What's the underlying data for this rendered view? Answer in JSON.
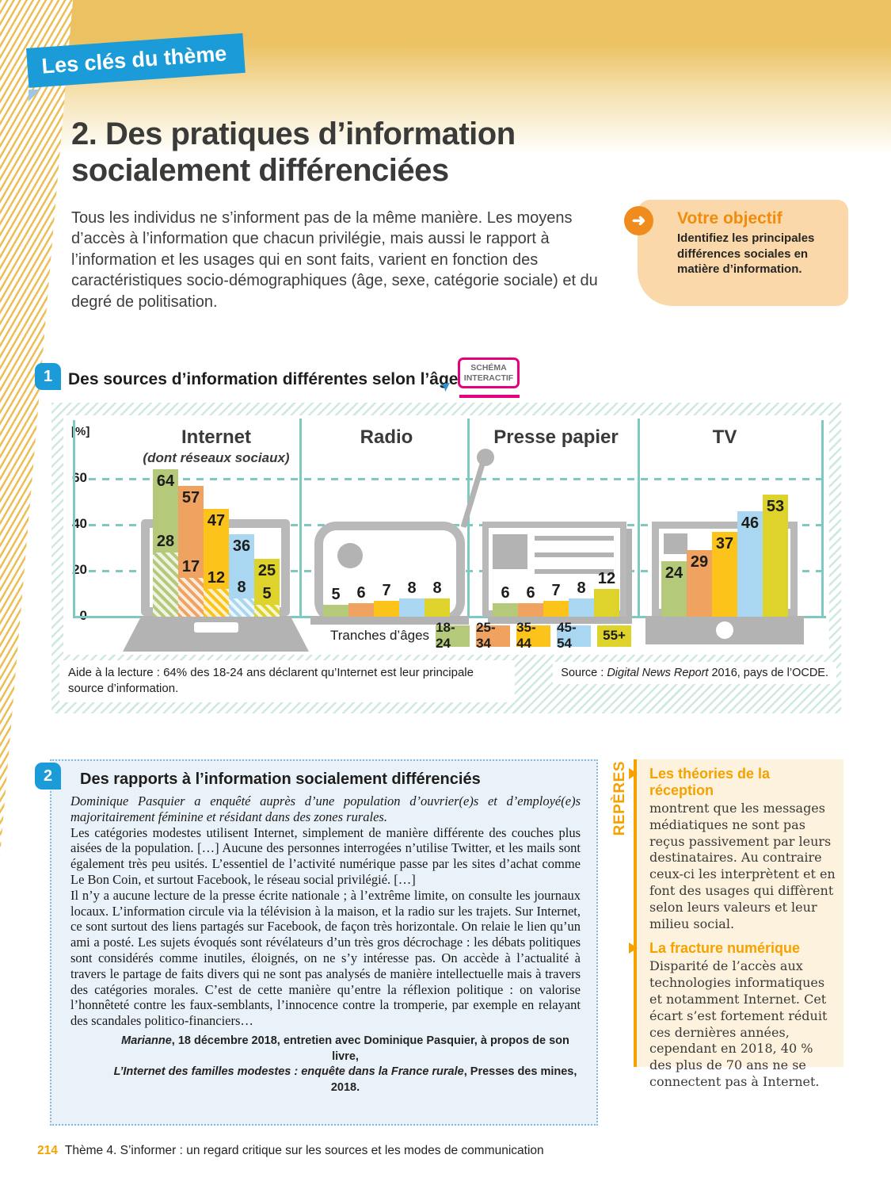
{
  "banner": "Les clés du thème",
  "title": "2. Des pratiques d’information socialement différenciées",
  "intro": "Tous les individus ne s’informent pas de la même manière. Les moyens d’accès à l’information que chacun privilégie, mais aussi le rapport à l’information et les usages qui en sont faits, varient en fonction des caractéristiques socio-démographiques (âge, sexe, catégorie sociale) et du degré de politisation.",
  "icons": {
    "arrow": "➜",
    "cursor": "➤"
  },
  "objectif": {
    "title": "Votre objectif",
    "body": "Identifiez les principales différences sociales en matière d’information."
  },
  "section1": {
    "number": "1",
    "title": "Des sources d’information différentes selon l’âge",
    "badge_line1": "SCHÉMA",
    "badge_line2": "INTERACTIF"
  },
  "chart_data": {
    "type": "bar",
    "title": "Des sources d’information différentes selon l’âge",
    "unit_label": "[%]",
    "ylabel": "%",
    "ylim": [
      0,
      68
    ],
    "y_ticks": [
      0,
      20,
      40,
      60
    ],
    "grid": true,
    "legend_label": "Tranches d’âges",
    "age_groups": [
      {
        "label": "18-24",
        "color": "#b5c97a"
      },
      {
        "label": "25-34",
        "color": "#f0a261"
      },
      {
        "label": "35-44",
        "color": "#fcc31a"
      },
      {
        "label": "45-54",
        "color": "#a9d7f2"
      },
      {
        "label": "55+",
        "color": "#ddd32b"
      }
    ],
    "panels": [
      {
        "name": "Internet",
        "subtitle": "(dont réseaux sociaux)",
        "values": [
          64,
          57,
          47,
          36,
          25
        ],
        "social_values": [
          28,
          17,
          12,
          8,
          5
        ]
      },
      {
        "name": "Radio",
        "values": [
          5,
          6,
          7,
          8,
          8
        ]
      },
      {
        "name": "Presse papier",
        "values": [
          6,
          6,
          7,
          8,
          12
        ]
      },
      {
        "name": "TV",
        "values": [
          24,
          29,
          37,
          46,
          53
        ]
      }
    ],
    "captions": {
      "aide": "Aide à la lecture : 64% des 18-24 ans déclarent qu’Internet est leur principale source d’information.",
      "source_prefix": "Source : ",
      "source_italic": "Digital News Report",
      "source_suffix": " 2016, pays de l’OCDE."
    }
  },
  "section2": {
    "number": "2",
    "title": "Des rapports à l’information socialement différenciés",
    "intro_italic": "Dominique Pasquier a enquêté auprès d’une population d’ouvrier(e)s et d’employé(e)s majoritairement féminine et résidant dans des zones rurales.",
    "para1": "Les catégories modestes utilisent Internet, simplement de manière différente des couches plus aisées de la population. […] Aucune des personnes interrogées n’utilise Twitter, et les mails sont également très peu usités. L’essentiel de l’activité numérique passe par les sites d’achat comme Le Bon Coin, et surtout Facebook, le réseau social privilégié. […]",
    "para2": "Il n’y a aucune lecture de la presse écrite nationale ; à l’extrême limite, on consulte les journaux locaux. L’information circule via la télévision à la maison, et la radio sur les trajets. Sur Internet, ce sont surtout des liens partagés sur Facebook, de façon très horizontale. On relaie le lien qu’un ami a posté. Les sujets évoqués sont révélateurs d’un très gros décrochage : les débats politiques sont considérés comme inutiles, éloignés, on ne s’y intéresse pas. On accède à l’actualité à travers le partage de faits divers qui ne sont pas analysés de manière intellectuelle mais à travers des catégories morales. C’est de cette manière qu’entre la réflexion politique : on valorise l’honnêteté contre les faux-semblants, l’innocence contre la tromperie, par exemple en relayant des scandales politico-financiers…",
    "attribution": {
      "italic1": "Marianne",
      "text1": ", 18 décembre 2018, entretien avec Dominique Pasquier, à propos de son livre,",
      "italic2": "L’Internet des familles modestes : enquête dans la France rurale",
      "text2": ", Presses des mines, 2018."
    }
  },
  "reperes": {
    "label": "REPÈRES",
    "items": [
      {
        "title": "Les théories de la réception",
        "body": "montrent que les messages médiatiques ne sont pas reçus passivement par leurs destinataires. Au contraire ceux-ci les interprètent et en font des usages qui diffèrent selon leurs valeurs et leur milieu social."
      },
      {
        "title": "La fracture numérique",
        "body": "Disparité de l’accès aux technologies informatiques et notamment Internet. Cet écart s’est fortement réduit ces dernières années, cependant en 2018, 40 % des plus de 70 ans ne se connectent pas à Internet."
      }
    ]
  },
  "footer": {
    "page": "214",
    "text": "Thème 4. S’informer : un regard critique sur les sources et les modes de communication"
  }
}
